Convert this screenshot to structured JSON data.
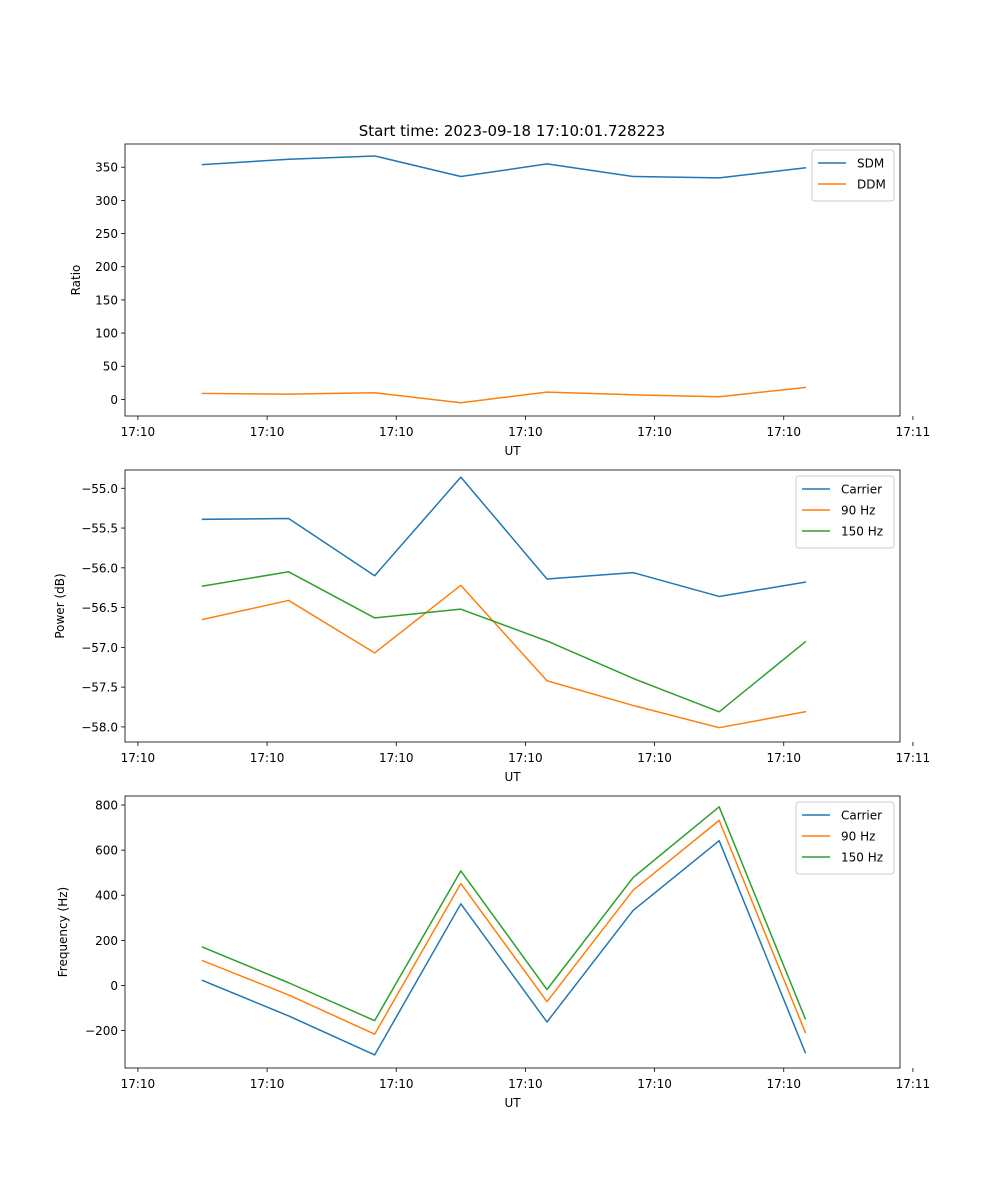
{
  "figure": {
    "title": "Start time: 2023-09-18 17:10:01.728223"
  },
  "chart_data": [
    {
      "type": "line",
      "title": "Start time: 2023-09-18 17:10:01.728223",
      "xlabel": "UT",
      "ylabel": "Ratio",
      "xlim": [
        -0.6,
        5.4
      ],
      "x": [
        0,
        0.667,
        1.333,
        2.0,
        2.667,
        3.333,
        4.0,
        4.667
      ],
      "xticks": [
        -0.5,
        0.5,
        1.5,
        2.5,
        3.5,
        4.5,
        5.5
      ],
      "xtick_labels": [
        "17:10",
        "17:10",
        "17:10",
        "17:10",
        "17:10",
        "17:10",
        "17:11"
      ],
      "ylim": [
        -25,
        385
      ],
      "yticks": [
        0,
        50,
        100,
        150,
        200,
        250,
        300,
        350
      ],
      "ytick_labels": [
        "0",
        "50",
        "100",
        "150",
        "200",
        "250",
        "300",
        "350"
      ],
      "legend": "top-right",
      "series": [
        {
          "name": "SDM",
          "color": "#1f77b4",
          "values": [
            354,
            362,
            367,
            336,
            355,
            336,
            334,
            349
          ]
        },
        {
          "name": "DDM",
          "color": "#ff7f0e",
          "values": [
            9,
            8,
            10,
            -5,
            11,
            7,
            4,
            18
          ]
        }
      ]
    },
    {
      "type": "line",
      "title": "",
      "xlabel": "UT",
      "ylabel": "Power (dB)",
      "xlim": [
        -0.6,
        5.4
      ],
      "x": [
        0,
        0.667,
        1.333,
        2.0,
        2.667,
        3.333,
        4.0,
        4.667
      ],
      "xticks": [
        -0.5,
        0.5,
        1.5,
        2.5,
        3.5,
        4.5,
        5.5
      ],
      "xtick_labels": [
        "17:10",
        "17:10",
        "17:10",
        "17:10",
        "17:10",
        "17:10",
        "17:11"
      ],
      "ylim": [
        -58.19,
        -54.77
      ],
      "yticks": [
        -58.0,
        -57.5,
        -57.0,
        -56.5,
        -56.0,
        -55.5,
        -55.0
      ],
      "ytick_labels": [
        "−58.0",
        "−57.5",
        "−57.0",
        "−56.5",
        "−56.0",
        "−55.5",
        "−55.0"
      ],
      "legend": "top-right",
      "series": [
        {
          "name": "Carrier",
          "color": "#1f77b4",
          "values": [
            -55.39,
            -55.38,
            -56.1,
            -54.86,
            -56.14,
            -56.06,
            -56.36,
            -56.18
          ]
        },
        {
          "name": "90 Hz",
          "color": "#ff7f0e",
          "values": [
            -56.65,
            -56.41,
            -57.07,
            -56.22,
            -57.42,
            -57.73,
            -58.01,
            -57.81
          ]
        },
        {
          "name": "150 Hz",
          "color": "#2ca02c",
          "values": [
            -56.23,
            -56.05,
            -56.63,
            -56.52,
            -56.92,
            -57.39,
            -57.81,
            -56.93
          ]
        }
      ]
    },
    {
      "type": "line",
      "title": "",
      "xlabel": "UT",
      "ylabel": "Frequency (Hz)",
      "xlim": [
        -0.6,
        5.4
      ],
      "x": [
        0,
        0.667,
        1.333,
        2.0,
        2.667,
        3.333,
        4.0,
        4.667
      ],
      "xticks": [
        -0.5,
        0.5,
        1.5,
        2.5,
        3.5,
        4.5,
        5.5
      ],
      "xtick_labels": [
        "17:10",
        "17:10",
        "17:10",
        "17:10",
        "17:10",
        "17:10",
        "17:11"
      ],
      "ylim": [
        -366,
        840
      ],
      "yticks": [
        -200,
        0,
        200,
        400,
        600,
        800
      ],
      "ytick_labels": [
        "−200",
        "0",
        "200",
        "400",
        "600",
        "800"
      ],
      "legend": "top-right",
      "series": [
        {
          "name": "Carrier",
          "color": "#1f77b4",
          "values": [
            22,
            -135,
            -308,
            362,
            -162,
            332,
            642,
            -298
          ]
        },
        {
          "name": "90 Hz",
          "color": "#ff7f0e",
          "values": [
            110,
            -42,
            -216,
            452,
            -72,
            422,
            732,
            -208
          ]
        },
        {
          "name": "150 Hz",
          "color": "#2ca02c",
          "values": [
            170,
            12,
            -156,
            508,
            -18,
            478,
            792,
            -148
          ]
        }
      ]
    }
  ]
}
